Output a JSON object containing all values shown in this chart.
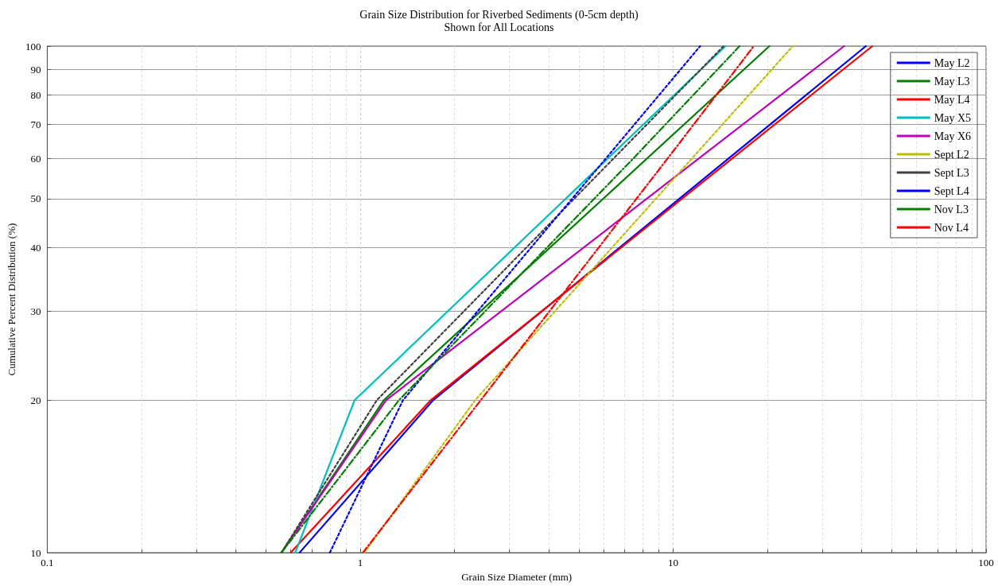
{
  "chart_data": {
    "type": "line",
    "title": "Grain Size Distribution for Riverbed Sediments (0-5cm depth)",
    "subtitle": "Shown for All Locations",
    "xlabel": "Grain Size Diameter (mm)",
    "ylabel": "Cumulative Percent Distribution (%)",
    "log": "xy",
    "xlim": [
      0.1,
      100
    ],
    "xticks": [
      0.1,
      1,
      10,
      100
    ],
    "ylim": [
      10,
      100
    ],
    "yticks": [
      10,
      20,
      30,
      40,
      50,
      60,
      70,
      80,
      90,
      100
    ],
    "grid": true,
    "legend": "top right",
    "marker": "none",
    "series": [
      {
        "name": "May L2",
        "color": "#0000ff",
        "line_style": "solid",
        "x": [
          0.64,
          1.71,
          41.3
        ],
        "values": [
          10,
          20,
          100
        ]
      },
      {
        "name": "May L3",
        "color": "#008000",
        "line_style": "solid",
        "x": [
          0.56,
          1.19,
          20.3
        ],
        "values": [
          10,
          20,
          100
        ]
      },
      {
        "name": "May L4",
        "color": "#ff0000",
        "line_style": "solid",
        "x": [
          0.6,
          1.68,
          43.3
        ],
        "values": [
          10,
          20,
          100
        ]
      },
      {
        "name": "May X5",
        "color": "#00bfbf",
        "line_style": "solid",
        "x": [
          0.62,
          0.96,
          14.7
        ],
        "values": [
          10,
          20,
          100
        ]
      },
      {
        "name": "May X6",
        "color": "#bf00bf",
        "line_style": "solid",
        "x": [
          0.56,
          1.21,
          35.2
        ],
        "values": [
          10,
          20,
          100
        ]
      },
      {
        "name": "Sept L2",
        "color": "#bfbf00",
        "line_style": "dotted",
        "x": [
          1.03,
          2.33,
          24.1
        ],
        "values": [
          10,
          20,
          100
        ]
      },
      {
        "name": "Sept L3",
        "color": "#404040",
        "line_style": "dotted",
        "x": [
          0.56,
          1.13,
          14.5
        ],
        "values": [
          10,
          20,
          100
        ]
      },
      {
        "name": "Sept L4",
        "color": "#0000ff",
        "line_style": "dotted",
        "x": [
          0.8,
          1.37,
          12.2
        ],
        "values": [
          10,
          20,
          100
        ]
      },
      {
        "name": "Nov L3",
        "color": "#008000",
        "line_style": "dashed",
        "x": [
          0.56,
          1.33,
          5.6,
          7.46,
          16.3
        ],
        "values": [
          10,
          20,
          50,
          60,
          100
        ]
      },
      {
        "name": "Nov L4",
        "color": "#ff0000",
        "line_style": "dashed",
        "x": [
          1.02,
          7.64,
          9.6,
          18.1
        ],
        "values": [
          10,
          50,
          60,
          100
        ]
      }
    ]
  }
}
